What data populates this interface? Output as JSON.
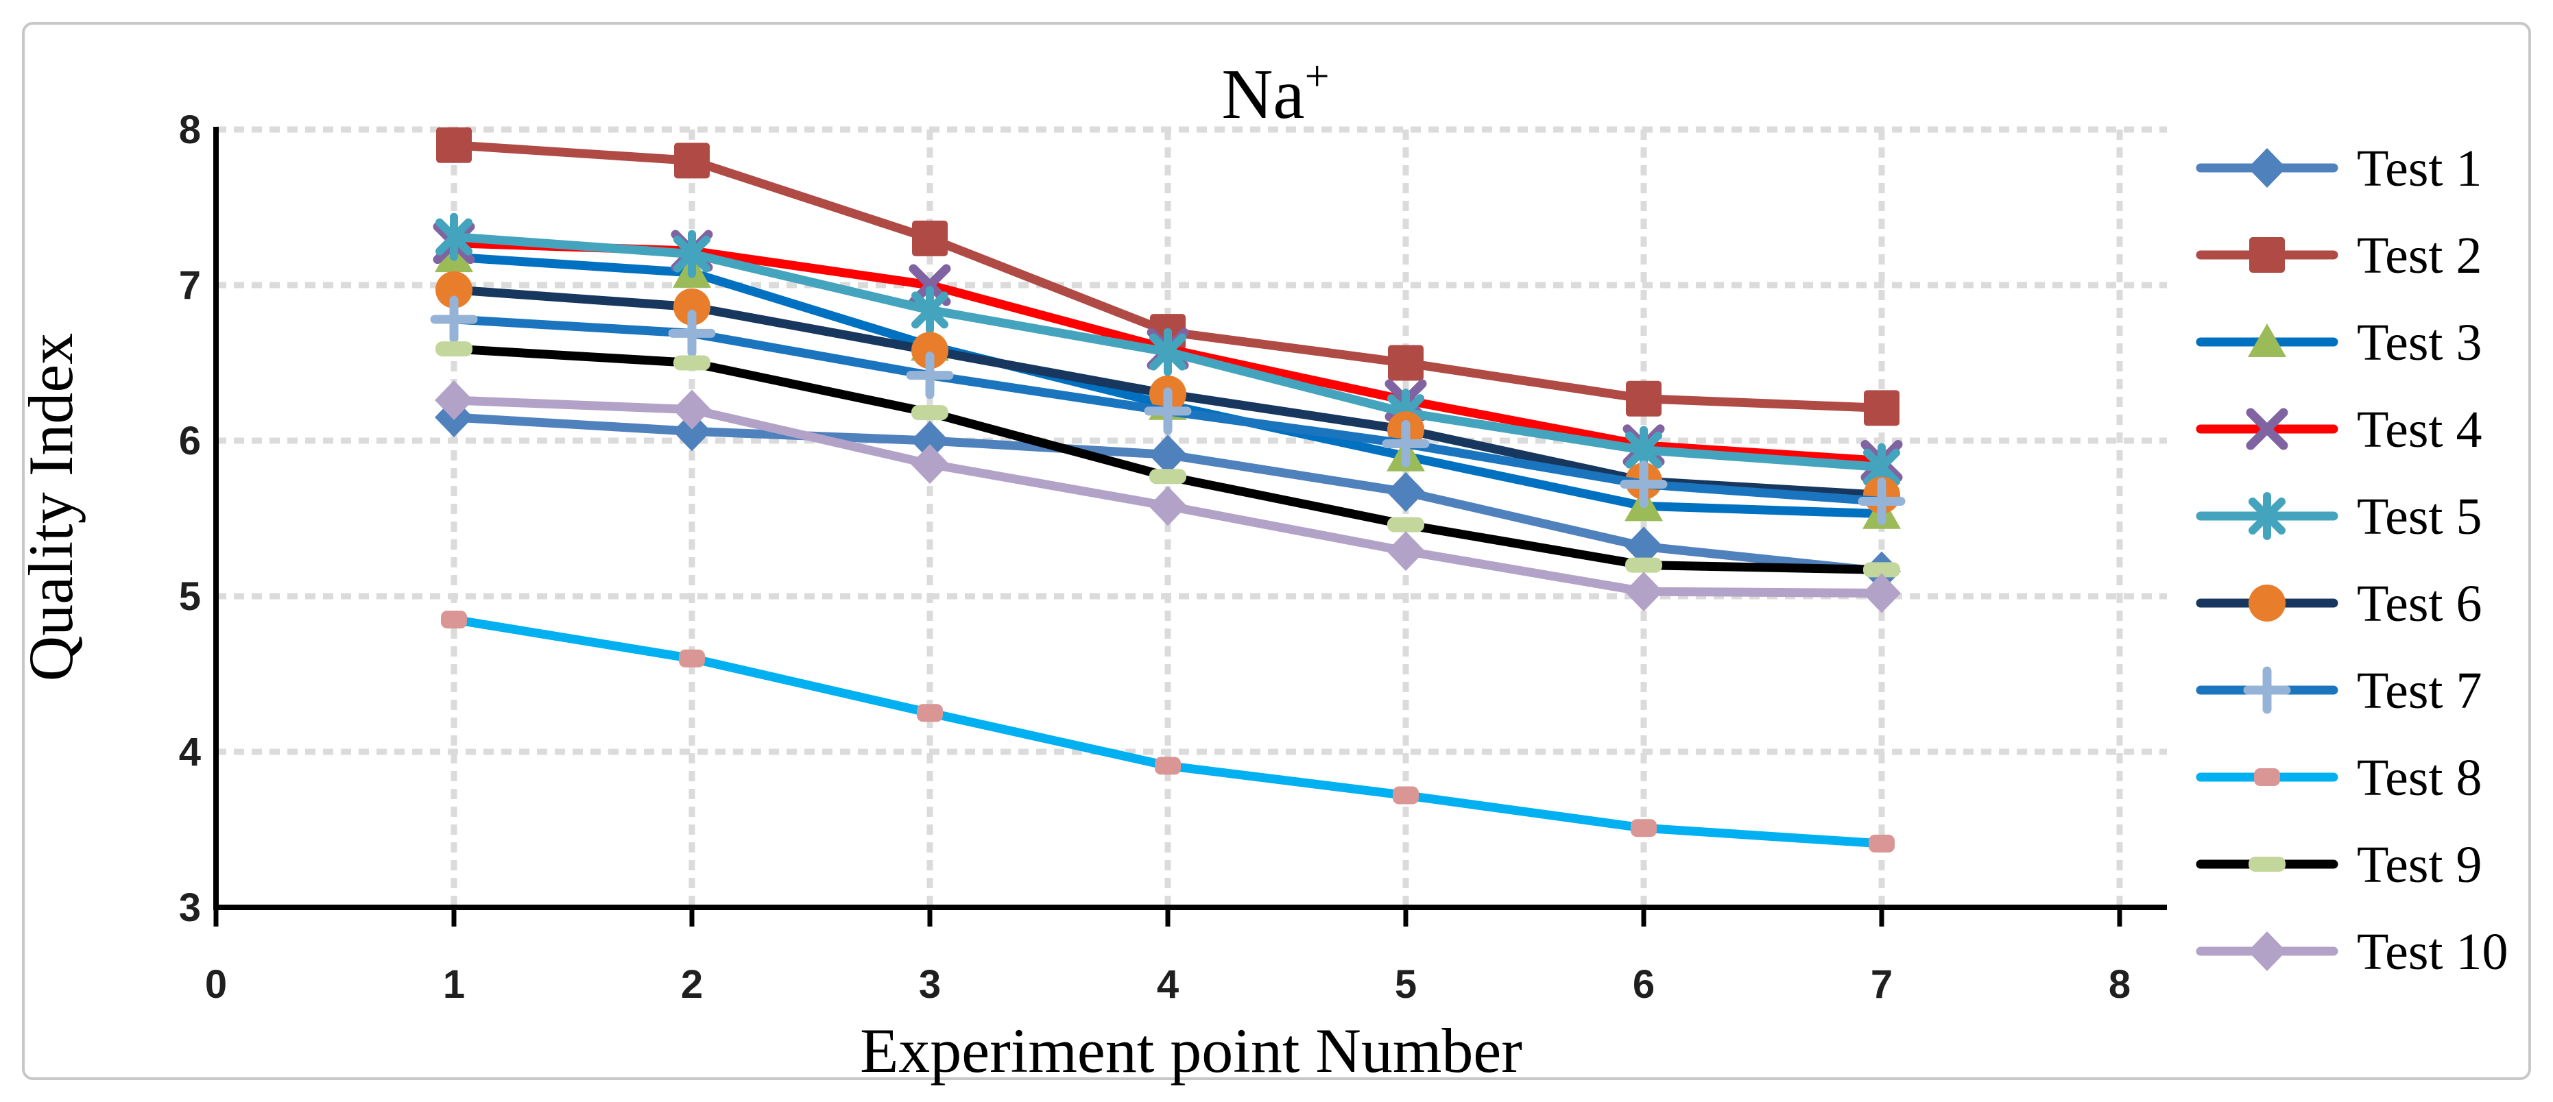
{
  "chart_data": {
    "type": "line",
    "title": "Na+",
    "title_main": "Na",
    "title_sup": "+",
    "xlabel": "Experiment point Number",
    "ylabel": "Quality Index",
    "x": [
      1,
      2,
      3,
      4,
      5,
      6,
      7
    ],
    "xlim": [
      0,
      8
    ],
    "ylim": [
      3,
      8
    ],
    "x_tick_labels": [
      "0",
      "1",
      "2",
      "3",
      "4",
      "5",
      "6",
      "7",
      "8"
    ],
    "y_tick_labels": [
      "3",
      "4",
      "5",
      "6",
      "7",
      "8"
    ],
    "grid": true,
    "legend_position": "right",
    "series": [
      {
        "name": "Test 1",
        "line_color": "#4F81BD",
        "marker": "diamond",
        "marker_color": "#4F81BD",
        "values": [
          6.15,
          6.06,
          6.0,
          5.91,
          5.67,
          5.32,
          5.16
        ]
      },
      {
        "name": "Test 2",
        "line_color": "#B04A45",
        "marker": "square",
        "marker_color": "#B04A45",
        "values": [
          7.9,
          7.8,
          7.3,
          6.7,
          6.5,
          6.27,
          6.21
        ]
      },
      {
        "name": "Test 3",
        "line_color": "#0070C0",
        "marker": "triangle",
        "marker_color": "#9BBB59",
        "values": [
          7.18,
          7.08,
          6.61,
          6.23,
          5.9,
          5.58,
          5.53
        ]
      },
      {
        "name": "Test 4",
        "line_color": "#FE0000",
        "marker": "x",
        "marker_color": "#8064A2",
        "values": [
          7.27,
          7.22,
          7.0,
          6.59,
          6.26,
          5.97,
          5.87
        ]
      },
      {
        "name": "Test 5",
        "line_color": "#45A4BD",
        "marker": "asterisk",
        "marker_color": "#45A4BD",
        "values": [
          7.31,
          7.2,
          6.84,
          6.57,
          6.18,
          5.94,
          5.83
        ]
      },
      {
        "name": "Test 6",
        "line_color": "#17375E",
        "marker": "circle",
        "marker_color": "#E87D2C",
        "values": [
          6.97,
          6.86,
          6.58,
          6.3,
          6.07,
          5.74,
          5.65
        ]
      },
      {
        "name": "Test 7",
        "line_color": "#1B74BE",
        "marker": "plus",
        "marker_color": "#95B3D7",
        "values": [
          6.78,
          6.69,
          6.42,
          6.19,
          5.98,
          5.72,
          5.61
        ]
      },
      {
        "name": "Test 8",
        "line_color": "#00B0F0",
        "marker": "small-square",
        "marker_color": "#D99694",
        "values": [
          4.85,
          4.6,
          4.25,
          3.91,
          3.72,
          3.51,
          3.41
        ]
      },
      {
        "name": "Test 9",
        "line_color": "#000000",
        "marker": "dash",
        "marker_color": "#C3D69B",
        "values": [
          6.59,
          6.5,
          6.18,
          5.77,
          5.46,
          5.2,
          5.17
        ]
      },
      {
        "name": "Test 10",
        "line_color": "#B3A2C7",
        "marker": "diamond",
        "marker_color": "#B3A2C7",
        "values": [
          6.26,
          6.2,
          5.85,
          5.58,
          5.29,
          5.03,
          5.02
        ]
      }
    ]
  },
  "colors": {
    "background": "#FFFFFF",
    "frame_border": "#C7C7C7",
    "gridline": "#DBDBDB",
    "axis": "#000000",
    "tick_label": "#1F1F1F"
  }
}
